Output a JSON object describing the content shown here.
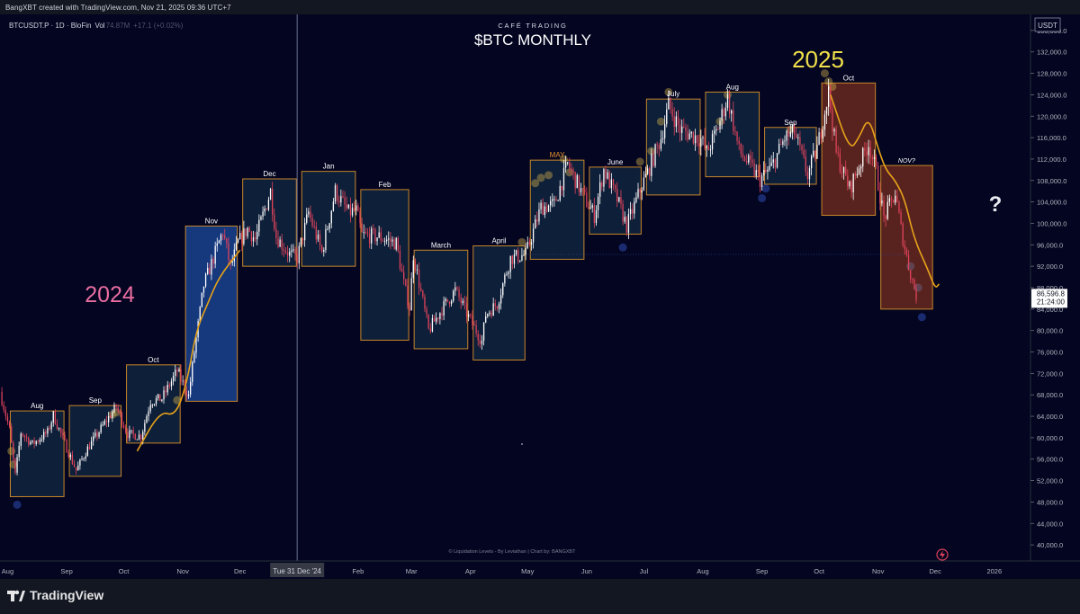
{
  "attribution": "BangXBT created with TradingView.com, Nov 21, 2025 09:36 UTC+7",
  "symbol_line": "BTCUSDT.P · 1D · BloFin",
  "vol_label": "Vol",
  "vol_value": "74.87M",
  "vol_change": "+17.1 (+0.02%)",
  "brand": "CAFÉ TRADING",
  "main_title": "$BTC MONTHLY",
  "year_2024": "2024",
  "year_2025": "2025",
  "question_mark": "?",
  "footer_credit": "© Liquidation Levels - By Leviathan | Chart by: BANGXBT",
  "crosshair_date": "Tue 31 Dec '24",
  "currency": "USDT",
  "price_label": "86,596.8",
  "countdown": "21:24:00",
  "tradingview": "TradingView",
  "colors": {
    "background": "#030521",
    "box_border": "#c7862a",
    "box_fill": "#16314a",
    "blue_box_fill": "#1e4a9c",
    "red_box_fill": "#7a2f1f",
    "up_candle": "#ffffff",
    "down_candle": "#e0435a",
    "path_line": "#e6a21a",
    "year_2024": "#ea6da0",
    "year_2025": "#f0e04a",
    "may_label": "#e8902a"
  },
  "chart_data": {
    "type": "candlestick",
    "title": "$BTC MONTHLY",
    "y_axis": {
      "ticks": [
        40000,
        44000,
        48000,
        52000,
        56000,
        60000,
        64000,
        68000,
        72000,
        76000,
        80000,
        84000,
        88000,
        92000,
        96000,
        100000,
        104000,
        108000,
        112000,
        116000,
        120000,
        124000,
        128000,
        132000,
        136000
      ],
      "tick_labels": [
        "40,000.0",
        "44,000.0",
        "48,000.0",
        "52,000.0",
        "56,000.0",
        "60,000.0",
        "64,000.0",
        "68,000.0",
        "72,000.0",
        "76,000.0",
        "80,000.0",
        "84,000.0",
        "88,000.0",
        "92,000.0",
        "96,000.0",
        "100,000.0",
        "104,000.0",
        "108,000.0",
        "112,000.0",
        "116,000.0",
        "120,000.0",
        "124,000.0",
        "128,000.0",
        "132,000.0",
        "136,000.0"
      ],
      "range": [
        37000,
        139000
      ]
    },
    "x_axis": {
      "range": [
        "2024-07-28",
        "2026-01-20"
      ],
      "ticks": [
        {
          "date": "2024-08-01",
          "label": "Aug"
        },
        {
          "date": "2024-09-01",
          "label": "Sep"
        },
        {
          "date": "2024-10-01",
          "label": "Oct"
        },
        {
          "date": "2024-11-01",
          "label": "Nov"
        },
        {
          "date": "2024-12-01",
          "label": "Dec"
        },
        {
          "date": "2025-02-01",
          "label": "Feb"
        },
        {
          "date": "2025-03-01",
          "label": "Mar"
        },
        {
          "date": "2025-04-01",
          "label": "Apr"
        },
        {
          "date": "2025-05-01",
          "label": "May"
        },
        {
          "date": "2025-06-01",
          "label": "Jun"
        },
        {
          "date": "2025-07-01",
          "label": "Jul"
        },
        {
          "date": "2025-08-01",
          "label": "Aug"
        },
        {
          "date": "2025-09-01",
          "label": "Sep"
        },
        {
          "date": "2025-10-01",
          "label": "Oct"
        },
        {
          "date": "2025-11-01",
          "label": "Nov"
        },
        {
          "date": "2025-12-01",
          "label": "Dec"
        },
        {
          "date": "2026-01-01",
          "label": "2026"
        }
      ]
    },
    "crosshair_date": "2024-12-31",
    "last_price": 86596.8,
    "month_boxes": [
      {
        "label": "Aug",
        "start": "2024-08-01",
        "end": "2024-08-31",
        "low": 49000,
        "high": 65000,
        "style": "dark"
      },
      {
        "label": "Sep",
        "start": "2024-09-01",
        "end": "2024-09-30",
        "low": 52800,
        "high": 66000,
        "style": "dark"
      },
      {
        "label": "Oct",
        "start": "2024-10-01",
        "end": "2024-10-31",
        "low": 59000,
        "high": 73600,
        "style": "dark"
      },
      {
        "label": "Nov",
        "start": "2024-11-01",
        "end": "2024-11-30",
        "low": 66800,
        "high": 99500,
        "style": "blue"
      },
      {
        "label": "Dec",
        "start": "2024-12-01",
        "end": "2024-12-31",
        "low": 92000,
        "high": 108300,
        "style": "dark"
      },
      {
        "label": "Jan",
        "start": "2025-01-01",
        "end": "2025-01-31",
        "low": 92000,
        "high": 109700,
        "style": "dark"
      },
      {
        "label": "Feb",
        "start": "2025-02-01",
        "end": "2025-02-28",
        "low": 78200,
        "high": 106300,
        "style": "dark"
      },
      {
        "label": "March",
        "start": "2025-03-01",
        "end": "2025-03-31",
        "low": 76600,
        "high": 95000,
        "style": "dark"
      },
      {
        "label": "April",
        "start": "2025-04-01",
        "end": "2025-04-30",
        "low": 74500,
        "high": 95800,
        "style": "dark"
      },
      {
        "label": "MAY",
        "start": "2025-05-01",
        "end": "2025-05-31",
        "low": 93300,
        "high": 111800,
        "style": "dark"
      },
      {
        "label": "June",
        "start": "2025-06-01",
        "end": "2025-06-30",
        "low": 98000,
        "high": 110500,
        "style": "dark"
      },
      {
        "label": "July",
        "start": "2025-07-01",
        "end": "2025-07-31",
        "low": 105300,
        "high": 123200,
        "style": "dark"
      },
      {
        "label": "Aug",
        "start": "2025-08-01",
        "end": "2025-08-31",
        "low": 108700,
        "high": 124500,
        "style": "dark"
      },
      {
        "label": "Sep",
        "start": "2025-09-01",
        "end": "2025-09-30",
        "low": 107300,
        "high": 117900,
        "style": "dark"
      },
      {
        "label": "Oct",
        "start": "2025-10-01",
        "end": "2025-10-31",
        "low": 101500,
        "high": 126200,
        "style": "red"
      },
      {
        "label": "NOV?",
        "start": "2025-11-01",
        "end": "2025-11-30",
        "low": 84000,
        "high": 110800,
        "style": "red"
      }
    ],
    "price_path": [
      {
        "date": "2024-07-28",
        "close": 68500
      },
      {
        "date": "2024-08-02",
        "close": 61500
      },
      {
        "date": "2024-08-05",
        "close": 53000
      },
      {
        "date": "2024-08-08",
        "close": 61000
      },
      {
        "date": "2024-08-14",
        "close": 58800
      },
      {
        "date": "2024-08-22",
        "close": 61000
      },
      {
        "date": "2024-08-25",
        "close": 64200
      },
      {
        "date": "2024-08-31",
        "close": 58900
      },
      {
        "date": "2024-09-06",
        "close": 53900
      },
      {
        "date": "2024-09-12",
        "close": 58000
      },
      {
        "date": "2024-09-19",
        "close": 61700
      },
      {
        "date": "2024-09-27",
        "close": 65800
      },
      {
        "date": "2024-10-03",
        "close": 60700
      },
      {
        "date": "2024-10-10",
        "close": 60300
      },
      {
        "date": "2024-10-15",
        "close": 66800
      },
      {
        "date": "2024-10-21",
        "close": 67300
      },
      {
        "date": "2024-10-29",
        "close": 72500
      },
      {
        "date": "2024-11-04",
        "close": 67800
      },
      {
        "date": "2024-11-07",
        "close": 76000
      },
      {
        "date": "2024-11-12",
        "close": 88500
      },
      {
        "date": "2024-11-22",
        "close": 98500
      },
      {
        "date": "2024-11-26",
        "close": 91800
      },
      {
        "date": "2024-11-30",
        "close": 96400
      },
      {
        "date": "2024-12-05",
        "close": 99000
      },
      {
        "date": "2024-12-09",
        "close": 97000
      },
      {
        "date": "2024-12-17",
        "close": 106000
      },
      {
        "date": "2024-12-20",
        "close": 97500
      },
      {
        "date": "2024-12-27",
        "close": 94200
      },
      {
        "date": "2024-12-31",
        "close": 93500
      },
      {
        "date": "2025-01-06",
        "close": 102000
      },
      {
        "date": "2025-01-13",
        "close": 94500
      },
      {
        "date": "2025-01-20",
        "close": 106000
      },
      {
        "date": "2025-01-27",
        "close": 102000
      },
      {
        "date": "2025-01-31",
        "close": 102400
      },
      {
        "date": "2025-02-03",
        "close": 97800
      },
      {
        "date": "2025-02-12",
        "close": 97500
      },
      {
        "date": "2025-02-21",
        "close": 96300
      },
      {
        "date": "2025-02-25",
        "close": 88700
      },
      {
        "date": "2025-02-28",
        "close": 84300
      },
      {
        "date": "2025-03-02",
        "close": 94200
      },
      {
        "date": "2025-03-10",
        "close": 80000
      },
      {
        "date": "2025-03-17",
        "close": 84000
      },
      {
        "date": "2025-03-24",
        "close": 87500
      },
      {
        "date": "2025-03-31",
        "close": 82500
      },
      {
        "date": "2025-04-07",
        "close": 78000
      },
      {
        "date": "2025-04-09",
        "close": 83000
      },
      {
        "date": "2025-04-15",
        "close": 85000
      },
      {
        "date": "2025-04-22",
        "close": 93500
      },
      {
        "date": "2025-04-30",
        "close": 94200
      },
      {
        "date": "2025-05-08",
        "close": 103000
      },
      {
        "date": "2025-05-15",
        "close": 103500
      },
      {
        "date": "2025-05-22",
        "close": 111000
      },
      {
        "date": "2025-05-31",
        "close": 104600
      },
      {
        "date": "2025-06-05",
        "close": 101500
      },
      {
        "date": "2025-06-10",
        "close": 110000
      },
      {
        "date": "2025-06-17",
        "close": 104500
      },
      {
        "date": "2025-06-22",
        "close": 99500
      },
      {
        "date": "2025-06-30",
        "close": 107100
      },
      {
        "date": "2025-07-03",
        "close": 109500
      },
      {
        "date": "2025-07-10",
        "close": 116000
      },
      {
        "date": "2025-07-14",
        "close": 122000
      },
      {
        "date": "2025-07-20",
        "close": 117500
      },
      {
        "date": "2025-07-31",
        "close": 115700
      },
      {
        "date": "2025-08-03",
        "close": 113200
      },
      {
        "date": "2025-08-08",
        "close": 117000
      },
      {
        "date": "2025-08-14",
        "close": 123500
      },
      {
        "date": "2025-08-20",
        "close": 113500
      },
      {
        "date": "2025-08-31",
        "close": 108200
      },
      {
        "date": "2025-09-06",
        "close": 110500
      },
      {
        "date": "2025-09-13",
        "close": 115900
      },
      {
        "date": "2025-09-18",
        "close": 117000
      },
      {
        "date": "2025-09-25",
        "close": 109000
      },
      {
        "date": "2025-09-30",
        "close": 114000
      },
      {
        "date": "2025-10-06",
        "close": 124500
      },
      {
        "date": "2025-10-10",
        "close": 113000
      },
      {
        "date": "2025-10-17",
        "close": 106500
      },
      {
        "date": "2025-10-27",
        "close": 115000
      },
      {
        "date": "2025-10-31",
        "close": 109500
      },
      {
        "date": "2025-11-04",
        "close": 101000
      },
      {
        "date": "2025-11-10",
        "close": 105500
      },
      {
        "date": "2025-11-13",
        "close": 99000
      },
      {
        "date": "2025-11-17",
        "close": 92000
      },
      {
        "date": "2025-11-21",
        "close": 86596.8
      }
    ],
    "projection_paths": [
      [
        {
          "date": "2024-10-08",
          "price": 57500
        },
        {
          "date": "2024-10-20",
          "price": 65000
        },
        {
          "date": "2024-10-28",
          "price": 64000
        },
        {
          "date": "2024-11-03",
          "price": 70000
        },
        {
          "date": "2024-11-08",
          "price": 80000
        },
        {
          "date": "2024-11-14",
          "price": 85000
        },
        {
          "date": "2024-11-20",
          "price": 90000
        },
        {
          "date": "2024-12-01",
          "price": 95000
        }
      ],
      [
        {
          "date": "2025-10-07",
          "price": 124000
        },
        {
          "date": "2025-10-17",
          "price": 113500
        },
        {
          "date": "2025-10-22",
          "price": 116000
        },
        {
          "date": "2025-10-27",
          "price": 120000
        },
        {
          "date": "2025-11-01",
          "price": 114000
        },
        {
          "date": "2025-11-05",
          "price": 110000
        },
        {
          "date": "2025-11-10",
          "price": 108000
        },
        {
          "date": "2025-11-15",
          "price": 104500
        },
        {
          "date": "2025-11-20",
          "price": 97000
        },
        {
          "date": "2025-11-27",
          "price": 91500
        },
        {
          "date": "2025-12-01",
          "price": 87800
        },
        {
          "date": "2025-12-03",
          "price": 88700
        }
      ]
    ]
  }
}
